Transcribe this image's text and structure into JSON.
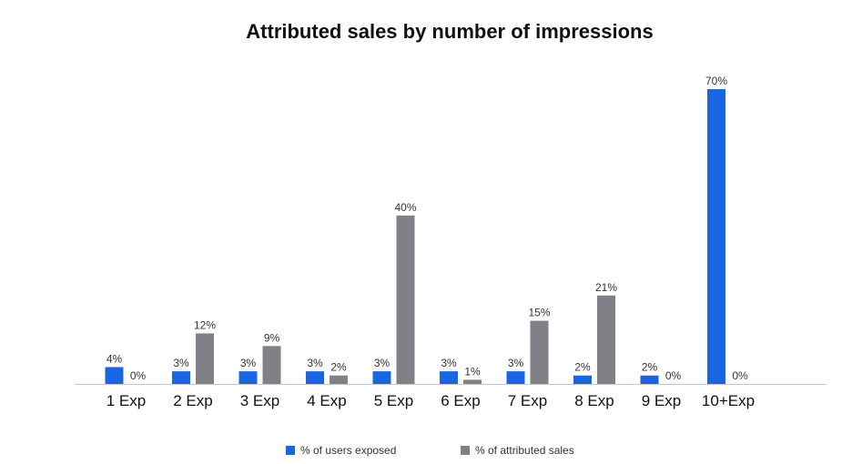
{
  "chart_data": {
    "type": "bar",
    "title": "Attributed sales by number of impressions",
    "xlabel": "",
    "ylabel": "",
    "ylim": [
      0,
      70
    ],
    "grid": false,
    "legend_position": "bottom",
    "categories": [
      "1 Exp",
      "2 Exp",
      "3 Exp",
      "4 Exp",
      "5 Exp",
      "6 Exp",
      "7 Exp",
      "8 Exp",
      "9 Exp",
      "10+Exp"
    ],
    "series": [
      {
        "name": "% of users exposed",
        "color": "#1a66e0",
        "values": [
          4,
          3,
          3,
          3,
          3,
          3,
          3,
          2,
          2,
          70
        ],
        "labels": [
          "4%",
          "3%",
          "3%",
          "3%",
          "3%",
          "3%",
          "3%",
          "2%",
          "2%",
          "70%"
        ]
      },
      {
        "name": "% of attributed sales",
        "color": "#7f8187",
        "values": [
          0,
          12,
          9,
          2,
          40,
          1,
          15,
          21,
          0,
          0
        ],
        "labels": [
          "0%",
          "12%",
          "9%",
          "2%",
          "40%",
          "1%",
          "15%",
          "21%",
          "0%",
          "0%"
        ]
      }
    ]
  }
}
